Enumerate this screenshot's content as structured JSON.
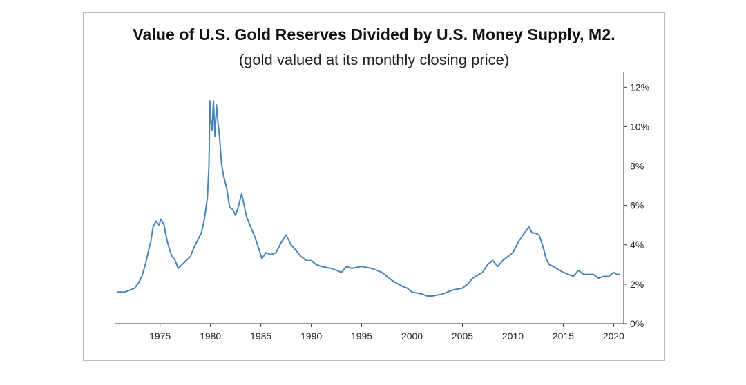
{
  "chart_data": {
    "type": "line",
    "title": "Value of U.S. Gold Reserves Divided by U.S. Money Supply, M2.",
    "subtitle": "(gold valued at its monthly closing price)",
    "xlabel": "",
    "ylabel": "",
    "xlim": [
      1970.5,
      2021
    ],
    "ylim": [
      0,
      12.5
    ],
    "x_ticks": [
      1975,
      1980,
      1985,
      1990,
      1995,
      2000,
      2005,
      2010,
      2015,
      2020
    ],
    "x_tick_labels": [
      "1975",
      "1980",
      "1985",
      "1990",
      "1995",
      "2000",
      "2005",
      "2010",
      "2015",
      "2020"
    ],
    "y_ticks": [
      0,
      2,
      4,
      6,
      8,
      10,
      12
    ],
    "y_tick_labels": [
      "0%",
      "2%",
      "4%",
      "6%",
      "8%",
      "10%",
      "12%"
    ],
    "y_axis_side": "right",
    "grid": false,
    "legend": "none",
    "colors": {
      "line": "#4a83b9",
      "axis": "#333333"
    },
    "series": [
      {
        "x": [
          1970.8,
          1971.5,
          1972.0,
          1972.5,
          1972.9,
          1973.2,
          1973.6,
          1973.9,
          1974.1,
          1974.3,
          1974.6,
          1974.9,
          1975.1,
          1975.4,
          1975.7,
          1976.1,
          1976.5,
          1976.8,
          1977.2,
          1977.6,
          1978.0,
          1978.4,
          1978.8,
          1979.1,
          1979.4,
          1979.7,
          1979.85,
          1979.95,
          1980.0,
          1980.15,
          1980.3,
          1980.45,
          1980.6,
          1980.75,
          1980.9,
          1981.1,
          1981.3,
          1981.6,
          1981.9,
          1982.2,
          1982.5,
          1982.8,
          1983.1,
          1983.3,
          1983.6,
          1984.0,
          1984.4,
          1984.8,
          1985.1,
          1985.5,
          1986.0,
          1986.5,
          1987.0,
          1987.5,
          1988.0,
          1988.5,
          1989.0,
          1989.5,
          1990.0,
          1990.5,
          1991.0,
          1992.0,
          1993.0,
          1993.5,
          1994.0,
          1995.0,
          1996.0,
          1997.0,
          1998.0,
          1999.0,
          1999.5,
          2000.0,
          2001.0,
          2001.5,
          2002.0,
          2003.0,
          2004.0,
          2005.0,
          2005.5,
          2006.0,
          2007.0,
          2007.5,
          2008.0,
          2008.5,
          2009.0,
          2009.5,
          2010.0,
          2010.5,
          2011.0,
          2011.3,
          2011.6,
          2011.9,
          2012.2,
          2012.6,
          2013.0,
          2013.3,
          2013.6,
          2014.0,
          2015.0,
          2015.5,
          2016.0,
          2016.5,
          2017.0,
          2018.0,
          2018.5,
          2019.0,
          2019.5,
          2020.0,
          2020.3,
          2020.6
        ],
        "y": [
          1.6,
          1.6,
          1.7,
          1.8,
          2.1,
          2.4,
          3.1,
          3.8,
          4.2,
          4.9,
          5.2,
          5.0,
          5.3,
          5.0,
          4.2,
          3.5,
          3.2,
          2.8,
          3.0,
          3.2,
          3.4,
          3.9,
          4.3,
          4.6,
          5.3,
          6.4,
          8.0,
          11.3,
          10.5,
          9.8,
          11.3,
          9.5,
          11.1,
          10.2,
          9.5,
          8.1,
          7.5,
          6.9,
          5.9,
          5.8,
          5.5,
          6.0,
          6.6,
          6.1,
          5.4,
          4.9,
          4.4,
          3.8,
          3.3,
          3.6,
          3.5,
          3.6,
          4.1,
          4.5,
          4.0,
          3.7,
          3.4,
          3.2,
          3.2,
          3.0,
          2.9,
          2.8,
          2.6,
          2.9,
          2.8,
          2.9,
          2.8,
          2.6,
          2.2,
          1.9,
          1.8,
          1.6,
          1.5,
          1.4,
          1.4,
          1.5,
          1.7,
          1.8,
          2.0,
          2.3,
          2.6,
          3.0,
          3.2,
          2.9,
          3.2,
          3.4,
          3.6,
          4.1,
          4.5,
          4.7,
          4.9,
          4.6,
          4.6,
          4.5,
          3.9,
          3.3,
          3.0,
          2.9,
          2.6,
          2.5,
          2.4,
          2.7,
          2.5,
          2.5,
          2.3,
          2.4,
          2.4,
          2.6,
          2.5,
          2.5
        ]
      }
    ]
  }
}
